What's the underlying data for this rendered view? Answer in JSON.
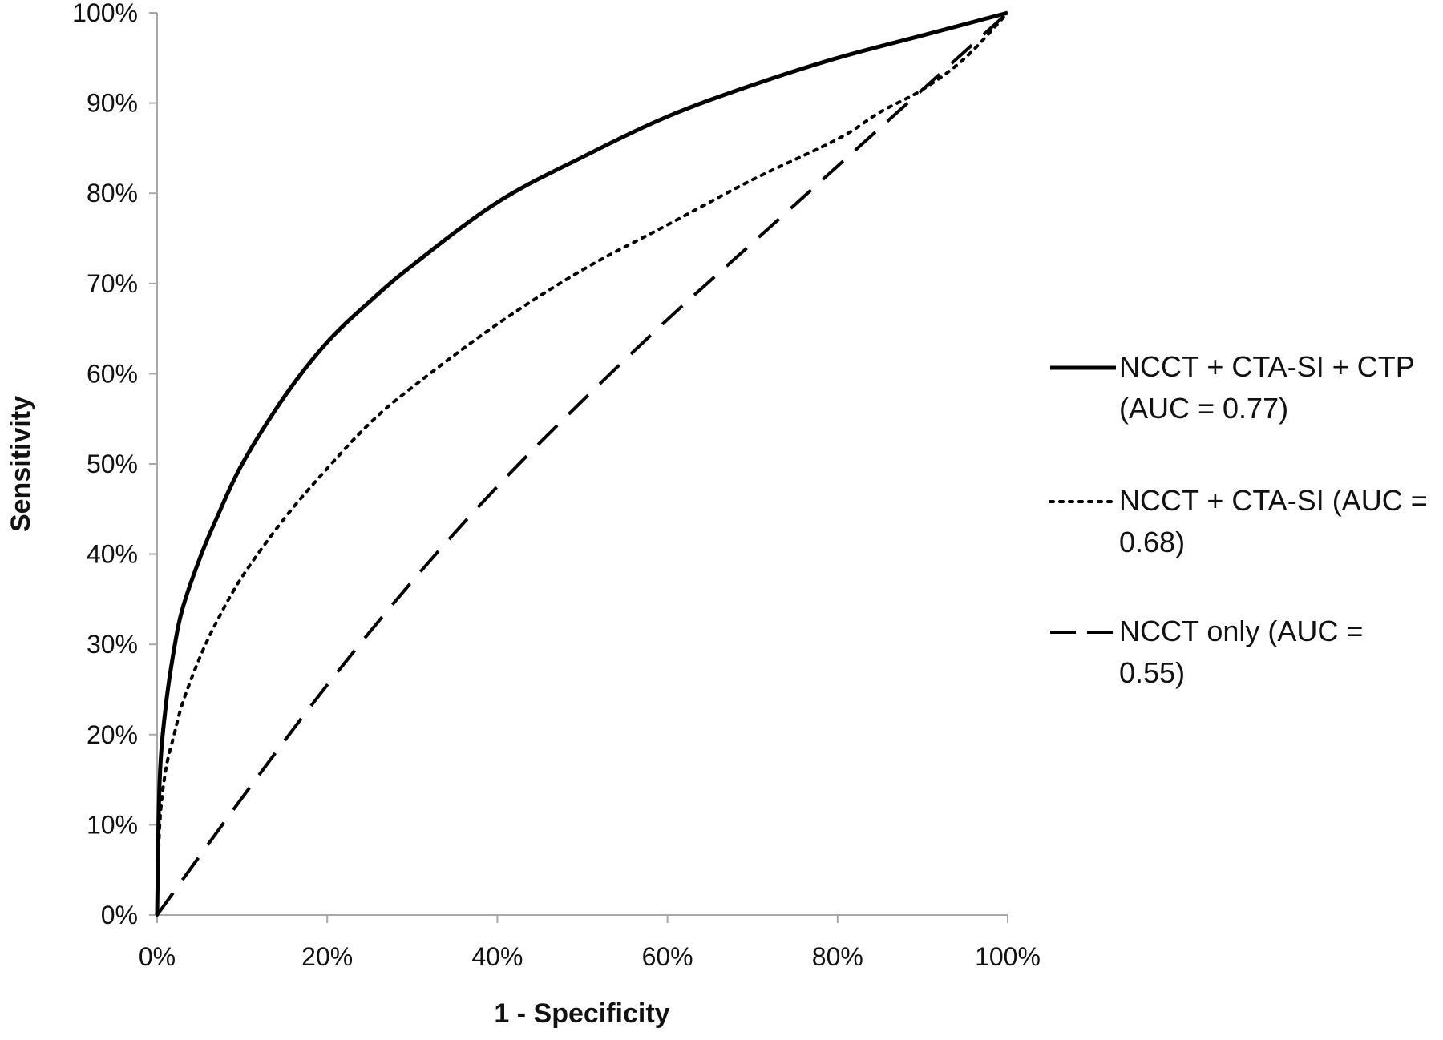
{
  "chart_data": {
    "type": "line",
    "title": "",
    "xlabel": "1 - Specificity",
    "ylabel": "Sensitivity",
    "xlim": [
      0,
      100
    ],
    "ylim": [
      0,
      100
    ],
    "x_ticks": [
      "0%",
      "20%",
      "40%",
      "60%",
      "80%",
      "100%"
    ],
    "x_tick_values": [
      0,
      20,
      40,
      60,
      80,
      100
    ],
    "y_ticks": [
      "0%",
      "10%",
      "20%",
      "30%",
      "40%",
      "50%",
      "60%",
      "70%",
      "80%",
      "90%",
      "100%"
    ],
    "y_tick_values": [
      0,
      10,
      20,
      30,
      40,
      50,
      60,
      70,
      80,
      90,
      100
    ],
    "grid": false,
    "legend_position": "right",
    "series": [
      {
        "name_lines": [
          "NCCT + CTA-SI + CTP",
          "(AUC = 0.77)"
        ],
        "style": "solid",
        "color": "#000000",
        "x": [
          0,
          0.3,
          1,
          2,
          3,
          5,
          7,
          10,
          15,
          20,
          25,
          30,
          40,
          50,
          60,
          70,
          80,
          90,
          100
        ],
        "y": [
          0,
          15,
          23,
          29.5,
          34,
          39.5,
          44,
          50,
          57.5,
          63.5,
          68,
          72,
          79,
          84,
          88.5,
          92,
          95,
          97.5,
          100
        ]
      },
      {
        "name_lines": [
          "NCCT + CTA-SI (AUC =",
          "0.68)"
        ],
        "style": "dotted",
        "color": "#000000",
        "x": [
          0,
          0.3,
          1,
          2,
          3,
          5,
          7,
          10,
          15,
          20,
          25,
          30,
          40,
          50,
          60,
          70,
          80,
          85,
          90,
          95,
          100
        ],
        "y": [
          0,
          10,
          16,
          20,
          23.5,
          28.5,
          32.5,
          37.5,
          44,
          49.5,
          54.5,
          58.5,
          65.5,
          71.5,
          76.5,
          81.5,
          86,
          89,
          91.5,
          95,
          100
        ]
      },
      {
        "name_lines": [
          "NCCT only (AUC =",
          "0.55)"
        ],
        "style": "dashed",
        "color": "#000000",
        "x": [
          0,
          10,
          20,
          30,
          40,
          50,
          60,
          70,
          80,
          90,
          100
        ],
        "y": [
          0,
          13,
          25.5,
          37,
          47.5,
          57,
          66,
          74.5,
          83,
          91.5,
          100
        ]
      }
    ]
  }
}
